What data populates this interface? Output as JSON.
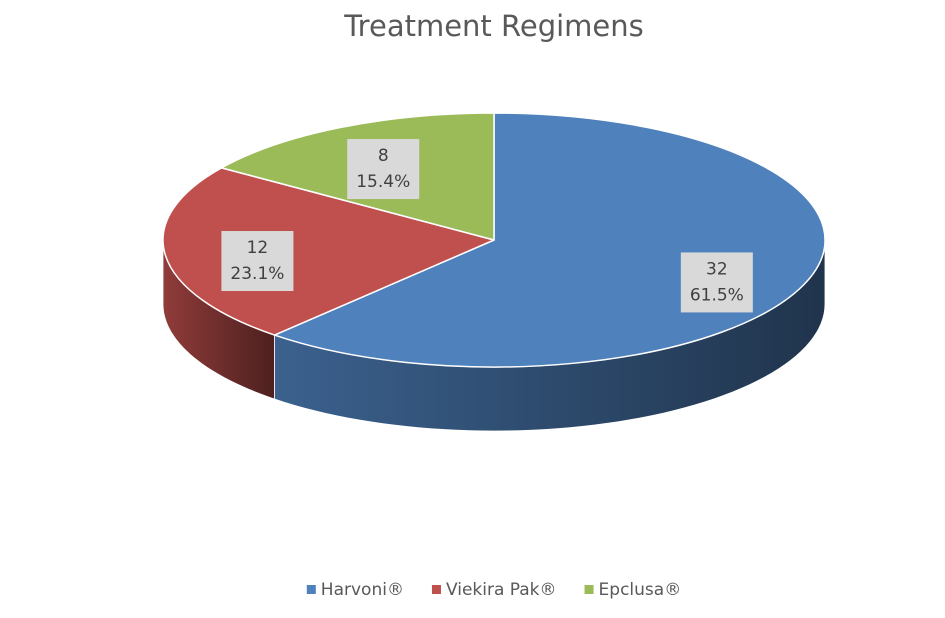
{
  "chart_data": {
    "type": "pie3d",
    "title": "Treatment Regimens",
    "categories": [
      "Harvoni®",
      "Viekira Pak®",
      "Epclusa®"
    ],
    "values": [
      32,
      12,
      8
    ],
    "percent_labels": [
      "61.5%",
      "23.1%",
      "15.4%"
    ],
    "colors": [
      "#4f81bd",
      "#c0504d",
      "#9bbb59"
    ],
    "legend": "bottom"
  }
}
